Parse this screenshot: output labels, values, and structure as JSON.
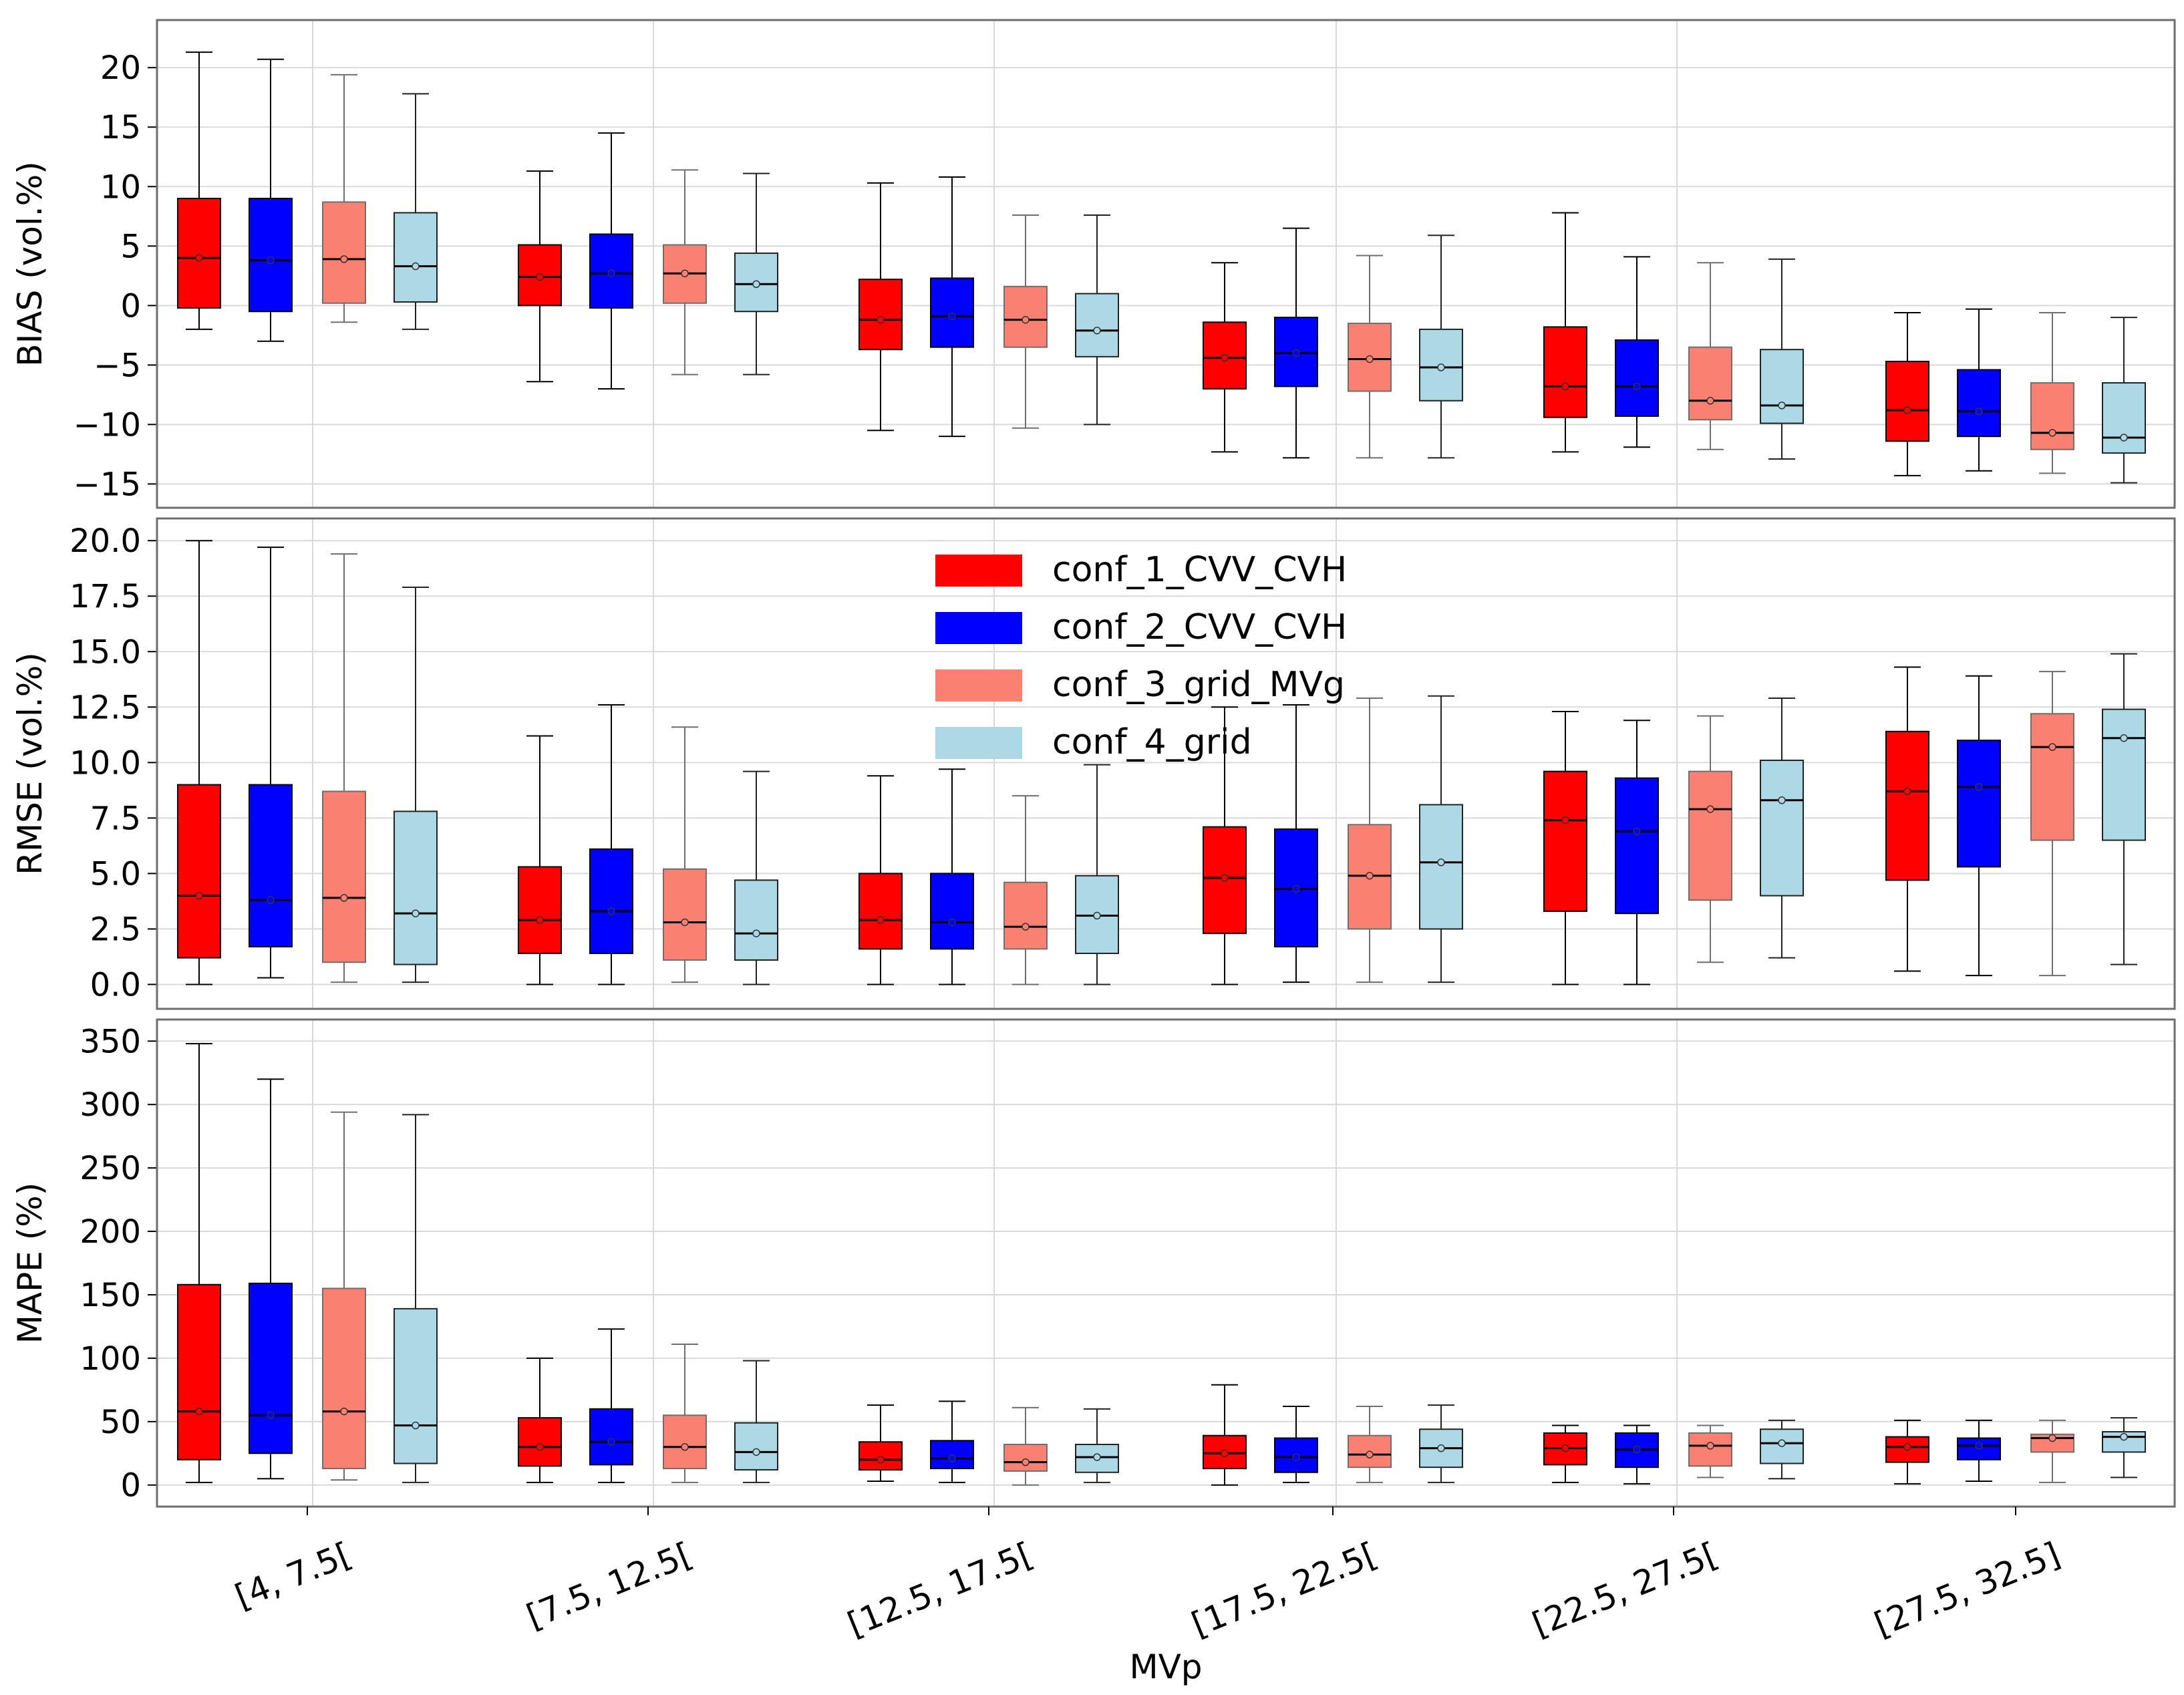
{
  "chart_data": {
    "type": "box",
    "xlabel": "MVp",
    "categories": [
      "[4, 7.5[",
      "[7.5, 12.5[",
      "[12.5, 17.5[",
      "[17.5, 22.5[",
      "[22.5, 27.5[",
      "[27.5, 32.5]"
    ],
    "series": [
      {
        "name": "conf_1_CVV_CVH",
        "color": "#ff0000",
        "border": "#000000"
      },
      {
        "name": "conf_2_CVV_CVH",
        "color": "#0000ff",
        "border": "#000000"
      },
      {
        "name": "conf_3_grid_MVg",
        "color": "#fa8072",
        "border": "#6e6e6e"
      },
      {
        "name": "conf_4_grid",
        "color": "#add8e6",
        "border": "#222222"
      }
    ],
    "panels": [
      {
        "ylabel": "BIAS (vol.%)",
        "ylim": [
          -17,
          24
        ],
        "yticks": [
          -15,
          -10,
          -5,
          0,
          5,
          10,
          15,
          20
        ],
        "ytick_labels": [
          "−15",
          "−10",
          "−5",
          "0",
          "5",
          "10",
          "15",
          "20"
        ],
        "boxes": [
          [
            [
              -2.0,
              -0.2,
              4.0,
              9.0,
              21.3
            ],
            [
              -3.0,
              -0.5,
              3.8,
              9.0,
              20.7
            ],
            [
              -1.4,
              0.2,
              3.9,
              8.7,
              19.4
            ],
            [
              -2.0,
              0.3,
              3.3,
              7.8,
              17.8
            ]
          ],
          [
            [
              -6.4,
              0.0,
              2.4,
              5.1,
              11.3
            ],
            [
              -7.0,
              -0.2,
              2.7,
              6.0,
              14.5
            ],
            [
              -5.8,
              0.2,
              2.7,
              5.1,
              11.4
            ],
            [
              -5.8,
              -0.5,
              1.8,
              4.4,
              11.1
            ]
          ],
          [
            [
              -10.5,
              -3.7,
              -1.2,
              2.2,
              10.3
            ],
            [
              -11.0,
              -3.5,
              -0.9,
              2.3,
              10.8
            ],
            [
              -10.3,
              -3.5,
              -1.2,
              1.6,
              7.6
            ],
            [
              -10.0,
              -4.3,
              -2.1,
              1.0,
              7.6
            ]
          ],
          [
            [
              -12.3,
              -7.0,
              -4.4,
              -1.4,
              3.6
            ],
            [
              -12.8,
              -6.8,
              -4.0,
              -1.0,
              6.5
            ],
            [
              -12.8,
              -7.2,
              -4.5,
              -1.5,
              4.2
            ],
            [
              -12.8,
              -8.0,
              -5.2,
              -2.0,
              5.9
            ]
          ],
          [
            [
              -12.3,
              -9.4,
              -6.8,
              -1.8,
              7.8
            ],
            [
              -11.9,
              -9.3,
              -6.8,
              -2.9,
              4.1
            ],
            [
              -12.1,
              -9.6,
              -8.0,
              -3.5,
              3.6
            ],
            [
              -12.9,
              -9.9,
              -8.4,
              -3.7,
              3.9
            ]
          ],
          [
            [
              -14.3,
              -11.4,
              -8.8,
              -4.7,
              -0.6
            ],
            [
              -13.9,
              -11.0,
              -8.9,
              -5.4,
              -0.3
            ],
            [
              -14.1,
              -12.1,
              -10.7,
              -6.5,
              -0.6
            ],
            [
              -14.9,
              -12.4,
              -11.1,
              -6.5,
              -1.0
            ]
          ]
        ]
      },
      {
        "ylabel": "RMSE (vol.%)",
        "ylim": [
          -1.1,
          21.0
        ],
        "yticks": [
          0.0,
          2.5,
          5.0,
          7.5,
          10.0,
          12.5,
          15.0,
          17.5,
          20.0
        ],
        "ytick_labels": [
          "0.0",
          "2.5",
          "5.0",
          "7.5",
          "10.0",
          "12.5",
          "15.0",
          "17.5",
          "20.0"
        ],
        "boxes": [
          [
            [
              0.0,
              1.2,
              4.0,
              9.0,
              20.0
            ],
            [
              0.3,
              1.7,
              3.8,
              9.0,
              19.7
            ],
            [
              0.1,
              1.0,
              3.9,
              8.7,
              19.4
            ],
            [
              0.1,
              0.9,
              3.2,
              7.8,
              17.9
            ]
          ],
          [
            [
              0.0,
              1.4,
              2.9,
              5.3,
              11.2
            ],
            [
              0.0,
              1.4,
              3.3,
              6.1,
              12.6
            ],
            [
              0.1,
              1.1,
              2.8,
              5.2,
              11.6
            ],
            [
              0.0,
              1.1,
              2.3,
              4.7,
              9.6
            ]
          ],
          [
            [
              0.0,
              1.6,
              2.9,
              5.0,
              9.4
            ],
            [
              0.0,
              1.6,
              2.8,
              5.0,
              9.7
            ],
            [
              0.0,
              1.6,
              2.6,
              4.6,
              8.5
            ],
            [
              0.0,
              1.4,
              3.1,
              4.9,
              9.9
            ]
          ],
          [
            [
              0.0,
              2.3,
              4.8,
              7.1,
              12.5
            ],
            [
              0.1,
              1.7,
              4.3,
              7.0,
              12.6
            ],
            [
              0.1,
              2.5,
              4.9,
              7.2,
              12.9
            ],
            [
              0.1,
              2.5,
              5.5,
              8.1,
              13.0
            ]
          ],
          [
            [
              0.0,
              3.3,
              7.4,
              9.6,
              12.3
            ],
            [
              0.0,
              3.2,
              6.9,
              9.3,
              11.9
            ],
            [
              1.0,
              3.8,
              7.9,
              9.6,
              12.1
            ],
            [
              1.2,
              4.0,
              8.3,
              10.1,
              12.9
            ]
          ],
          [
            [
              0.6,
              4.7,
              8.7,
              11.4,
              14.3
            ],
            [
              0.4,
              5.3,
              8.9,
              11.0,
              13.9
            ],
            [
              0.4,
              6.5,
              10.7,
              12.2,
              14.1
            ],
            [
              0.9,
              6.5,
              11.1,
              12.4,
              14.9
            ]
          ]
        ]
      },
      {
        "ylabel": "MAPE (%)",
        "ylim": [
          -17,
          367
        ],
        "yticks": [
          0,
          50,
          100,
          150,
          200,
          250,
          300,
          350
        ],
        "ytick_labels": [
          "0",
          "50",
          "100",
          "150",
          "200",
          "250",
          "300",
          "350"
        ],
        "boxes": [
          [
            [
              2,
              20,
              58,
              158,
              348
            ],
            [
              5,
              25,
              55,
              159,
              320
            ],
            [
              4,
              13,
              58,
              155,
              294
            ],
            [
              2,
              17,
              47,
              139,
              292
            ]
          ],
          [
            [
              2,
              15,
              30,
              53,
              100
            ],
            [
              2,
              16,
              34,
              60,
              123
            ],
            [
              2,
              13,
              30,
              55,
              111
            ],
            [
              2,
              12,
              26,
              49,
              98
            ]
          ],
          [
            [
              3,
              12,
              20,
              34,
              63
            ],
            [
              2,
              13,
              21,
              35,
              66
            ],
            [
              0,
              11,
              18,
              32,
              61
            ],
            [
              2,
              10,
              22,
              32,
              60
            ]
          ],
          [
            [
              0,
              13,
              25,
              39,
              79
            ],
            [
              2,
              10,
              22,
              37,
              62
            ],
            [
              2,
              14,
              24,
              39,
              62
            ],
            [
              2,
              14,
              29,
              44,
              63
            ]
          ],
          [
            [
              2,
              16,
              29,
              41,
              47
            ],
            [
              1,
              14,
              28,
              41,
              47
            ],
            [
              6,
              15,
              31,
              41,
              47
            ],
            [
              5,
              17,
              33,
              44,
              51
            ]
          ],
          [
            [
              1,
              18,
              30,
              38,
              51
            ],
            [
              3,
              20,
              31,
              37,
              51
            ],
            [
              2,
              26,
              37,
              40,
              51
            ],
            [
              6,
              26,
              38,
              42,
              53
            ]
          ]
        ]
      }
    ]
  }
}
